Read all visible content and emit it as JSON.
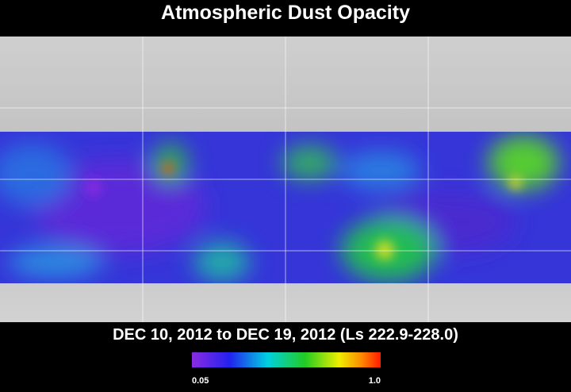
{
  "title": "Atmospheric Dust Opacity",
  "subtitle": "DEC 10, 2012 to DEC 19, 2012 (Ls 222.9-228.0)",
  "colorbar": {
    "ticks": [
      0.05,
      {
        "value": 1.0,
        "label": "1.0"
      }
    ]
  }
}
